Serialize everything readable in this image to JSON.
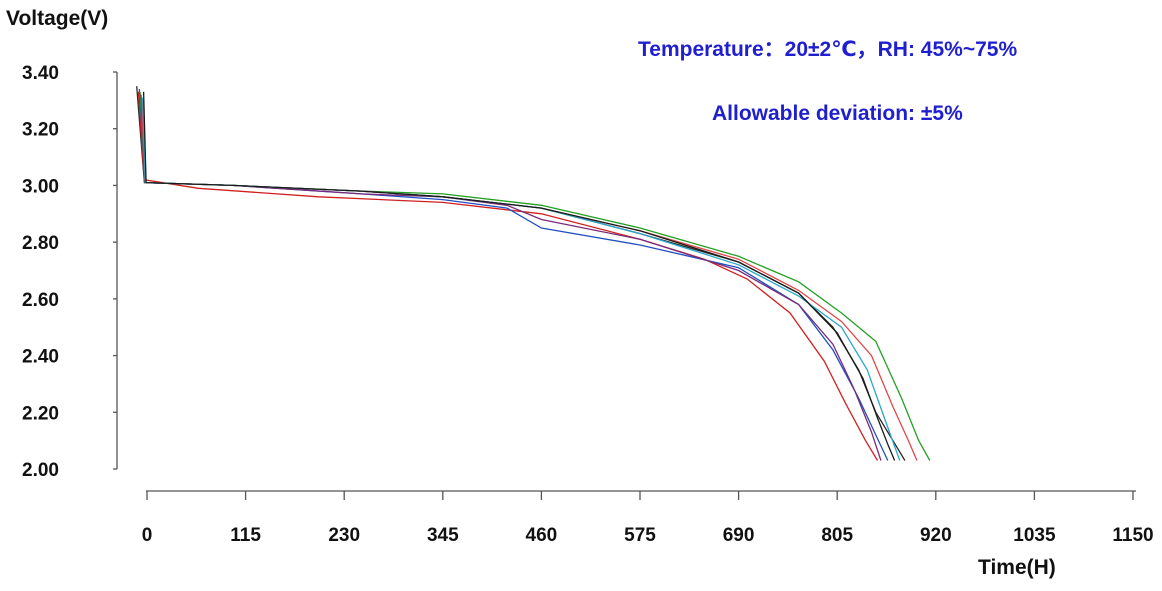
{
  "chart_data": {
    "type": "line",
    "ylabel": "Voltage(V)",
    "xlabel": "Time(H)",
    "annotations": [
      "Temperature：20±2℃，RH: 45%~75%",
      "Allowable deviation: ±5%"
    ],
    "annotation_color": "#1f1fd0",
    "yticks": [
      "3.40",
      "3.20",
      "3.00",
      "2.80",
      "2.60",
      "2.40",
      "2.20",
      "2.00"
    ],
    "ytick_values": [
      3.4,
      3.2,
      3.0,
      2.8,
      2.6,
      2.4,
      2.2,
      2.0
    ],
    "xticks": [
      "0",
      "115",
      "230",
      "345",
      "460",
      "575",
      "690",
      "805",
      "920",
      "1035",
      "1150"
    ],
    "xtick_values": [
      0,
      115,
      230,
      345,
      460,
      575,
      690,
      805,
      920,
      1035,
      1150
    ],
    "xlim": [
      0,
      1150
    ],
    "ylim": [
      2.0,
      3.4
    ],
    "grid": false,
    "series": [
      {
        "color": "#2a2a2a",
        "points": [
          [
            -12,
            3.35
          ],
          [
            -3,
            3.01
          ],
          [
            100,
            3.0
          ],
          [
            250,
            2.98
          ],
          [
            345,
            2.96
          ],
          [
            460,
            2.92
          ],
          [
            575,
            2.83
          ],
          [
            690,
            2.73
          ],
          [
            760,
            2.62
          ],
          [
            800,
            2.5
          ],
          [
            830,
            2.35
          ],
          [
            850,
            2.2
          ],
          [
            870,
            2.1
          ],
          [
            884,
            2.03
          ]
        ]
      },
      {
        "color": "#d02020",
        "points": [
          [
            -10,
            3.33
          ],
          [
            -3,
            3.02
          ],
          [
            60,
            2.99
          ],
          [
            200,
            2.96
          ],
          [
            345,
            2.94
          ],
          [
            460,
            2.9
          ],
          [
            575,
            2.81
          ],
          [
            650,
            2.74
          ],
          [
            700,
            2.67
          ],
          [
            750,
            2.55
          ],
          [
            790,
            2.38
          ],
          [
            815,
            2.23
          ],
          [
            838,
            2.1
          ],
          [
            852,
            2.03
          ]
        ]
      },
      {
        "color": "#2050c0",
        "points": [
          [
            -9,
            3.34
          ],
          [
            -2,
            3.01
          ],
          [
            100,
            3.0
          ],
          [
            250,
            2.97
          ],
          [
            345,
            2.95
          ],
          [
            420,
            2.92
          ],
          [
            460,
            2.85
          ],
          [
            575,
            2.79
          ],
          [
            690,
            2.71
          ],
          [
            760,
            2.58
          ],
          [
            800,
            2.42
          ],
          [
            830,
            2.25
          ],
          [
            850,
            2.12
          ],
          [
            864,
            2.03
          ]
        ]
      },
      {
        "color": "#22a022",
        "points": [
          [
            -8,
            3.33
          ],
          [
            -2,
            3.01
          ],
          [
            100,
            3.0
          ],
          [
            250,
            2.98
          ],
          [
            345,
            2.97
          ],
          [
            460,
            2.93
          ],
          [
            575,
            2.85
          ],
          [
            690,
            2.75
          ],
          [
            760,
            2.66
          ],
          [
            810,
            2.55
          ],
          [
            850,
            2.45
          ],
          [
            880,
            2.25
          ],
          [
            900,
            2.1
          ],
          [
            913,
            2.03
          ]
        ]
      },
      {
        "color": "#7a2a7a",
        "points": [
          [
            -7,
            3.32
          ],
          [
            -2,
            3.01
          ],
          [
            100,
            3.0
          ],
          [
            250,
            2.97
          ],
          [
            345,
            2.96
          ],
          [
            420,
            2.93
          ],
          [
            460,
            2.88
          ],
          [
            575,
            2.81
          ],
          [
            690,
            2.7
          ],
          [
            760,
            2.58
          ],
          [
            800,
            2.44
          ],
          [
            825,
            2.28
          ],
          [
            845,
            2.13
          ],
          [
            856,
            2.03
          ]
        ]
      },
      {
        "color": "#e04848",
        "points": [
          [
            -6,
            3.3
          ],
          [
            -2,
            3.01
          ],
          [
            100,
            3.0
          ],
          [
            250,
            2.98
          ],
          [
            345,
            2.96
          ],
          [
            460,
            2.92
          ],
          [
            575,
            2.84
          ],
          [
            690,
            2.74
          ],
          [
            760,
            2.63
          ],
          [
            810,
            2.52
          ],
          [
            845,
            2.4
          ],
          [
            870,
            2.22
          ],
          [
            888,
            2.1
          ],
          [
            898,
            2.03
          ]
        ]
      },
      {
        "color": "#28a8c8",
        "points": [
          [
            -5,
            3.31
          ],
          [
            -2,
            3.01
          ],
          [
            100,
            3.0
          ],
          [
            250,
            2.98
          ],
          [
            345,
            2.96
          ],
          [
            460,
            2.92
          ],
          [
            575,
            2.83
          ],
          [
            690,
            2.72
          ],
          [
            760,
            2.61
          ],
          [
            810,
            2.5
          ],
          [
            840,
            2.35
          ],
          [
            860,
            2.18
          ],
          [
            872,
            2.08
          ],
          [
            878,
            2.03
          ]
        ]
      },
      {
        "color": "#1a1a1a",
        "points": [
          [
            -4,
            3.33
          ],
          [
            -1,
            3.01
          ],
          [
            100,
            3.0
          ],
          [
            250,
            2.98
          ],
          [
            345,
            2.96
          ],
          [
            460,
            2.92
          ],
          [
            575,
            2.84
          ],
          [
            690,
            2.73
          ],
          [
            760,
            2.62
          ],
          [
            805,
            2.48
          ],
          [
            835,
            2.32
          ],
          [
            852,
            2.18
          ],
          [
            865,
            2.08
          ],
          [
            872,
            2.03
          ]
        ]
      }
    ]
  }
}
